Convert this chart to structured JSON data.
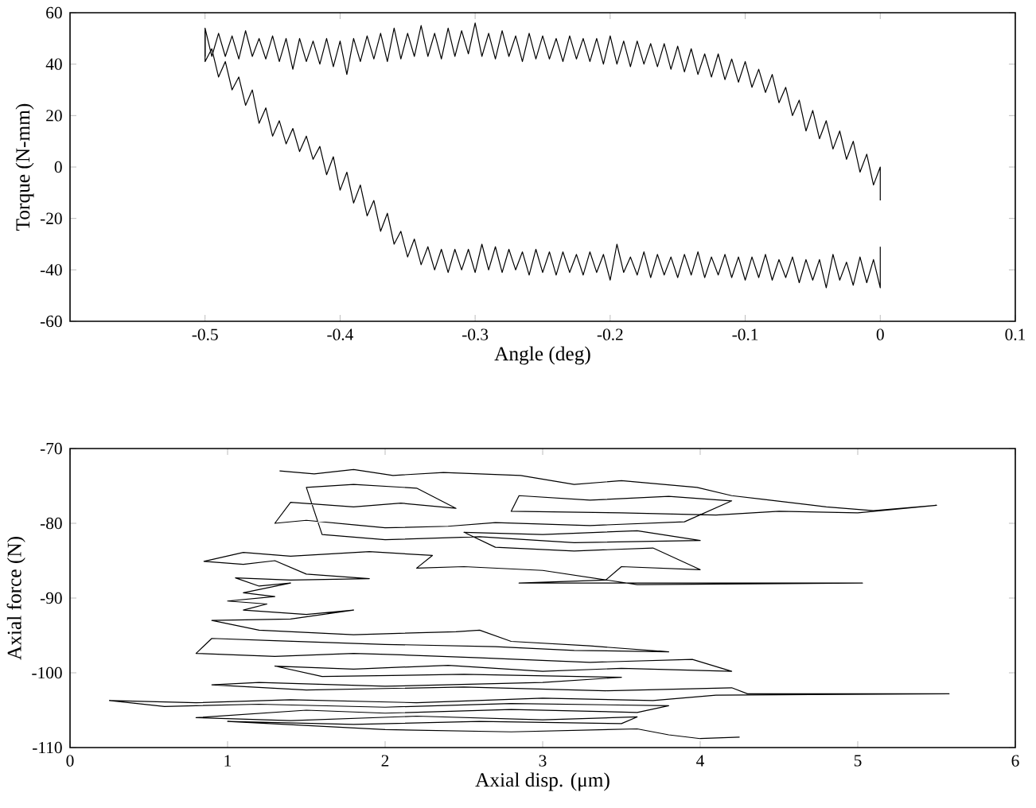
{
  "chart_data": [
    {
      "type": "line",
      "xlabel": "Angle (deg)",
      "ylabel": "Torque (N-mm)",
      "xlim": [
        -0.6,
        0.1
      ],
      "ylim": [
        -60,
        60
      ],
      "xticks": [
        -0.5,
        -0.4,
        -0.3,
        -0.2,
        -0.1,
        0,
        0.1
      ],
      "yticks": [
        -60,
        -40,
        -20,
        0,
        20,
        40,
        60
      ],
      "series": [
        {
          "color": "#000000",
          "x": [
            -0.5,
            -0.5,
            -0.495,
            -0.49,
            -0.485,
            -0.48,
            -0.475,
            -0.47,
            -0.465,
            -0.46,
            -0.455,
            -0.45,
            -0.445,
            -0.44,
            -0.435,
            -0.43,
            -0.425,
            -0.42,
            -0.415,
            -0.41,
            -0.405,
            -0.4,
            -0.395,
            -0.39,
            -0.385,
            -0.38,
            -0.375,
            -0.37,
            -0.365,
            -0.36,
            -0.355,
            -0.35,
            -0.345,
            -0.34,
            -0.335,
            -0.33,
            -0.325,
            -0.32,
            -0.315,
            -0.31,
            -0.305,
            -0.3,
            -0.295,
            -0.29,
            -0.285,
            -0.28,
            -0.275,
            -0.27,
            -0.265,
            -0.26,
            -0.255,
            -0.25,
            -0.245,
            -0.24,
            -0.235,
            -0.23,
            -0.225,
            -0.22,
            -0.215,
            -0.21,
            -0.205,
            -0.2,
            -0.195,
            -0.19,
            -0.185,
            -0.18,
            -0.175,
            -0.17,
            -0.165,
            -0.16,
            -0.155,
            -0.15,
            -0.145,
            -0.14,
            -0.135,
            -0.13,
            -0.125,
            -0.12,
            -0.115,
            -0.11,
            -0.105,
            -0.1,
            -0.095,
            -0.09,
            -0.085,
            -0.08,
            -0.075,
            -0.07,
            -0.065,
            -0.06,
            -0.055,
            -0.05,
            -0.045,
            -0.04,
            -0.035,
            -0.03,
            -0.025,
            -0.02,
            -0.015,
            -0.01,
            -0.005,
            0,
            0
          ],
          "values": [
            43,
            54,
            43,
            52,
            43,
            51,
            42,
            53,
            43,
            50,
            42,
            51,
            41,
            50,
            38,
            50,
            41,
            49,
            40,
            50,
            39,
            49,
            36,
            50,
            41,
            51,
            42,
            52,
            41,
            54,
            42,
            52,
            43,
            55,
            43,
            52,
            42,
            54,
            43,
            53,
            44,
            56,
            43,
            52,
            42,
            53,
            43,
            51,
            41,
            52,
            42,
            51,
            42,
            50,
            41,
            51,
            42,
            50,
            41,
            50,
            40,
            51,
            40,
            49,
            39,
            49,
            40,
            48,
            39,
            48,
            38,
            47,
            37,
            46,
            36,
            44,
            35,
            44,
            34,
            42,
            33,
            41,
            31,
            38,
            29,
            36,
            25,
            31,
            20,
            26,
            14,
            22,
            11,
            18,
            7,
            14,
            3,
            10,
            -2,
            5,
            -7,
            0,
            -13
          ]
        },
        {
          "color": "#000000",
          "x": [
            0,
            0,
            -0.005,
            -0.01,
            -0.015,
            -0.02,
            -0.025,
            -0.03,
            -0.035,
            -0.04,
            -0.045,
            -0.05,
            -0.055,
            -0.06,
            -0.065,
            -0.07,
            -0.075,
            -0.08,
            -0.085,
            -0.09,
            -0.095,
            -0.1,
            -0.105,
            -0.11,
            -0.115,
            -0.12,
            -0.125,
            -0.13,
            -0.135,
            -0.14,
            -0.145,
            -0.15,
            -0.155,
            -0.16,
            -0.165,
            -0.17,
            -0.175,
            -0.18,
            -0.185,
            -0.19,
            -0.195,
            -0.2,
            -0.205,
            -0.21,
            -0.215,
            -0.22,
            -0.225,
            -0.23,
            -0.235,
            -0.24,
            -0.245,
            -0.25,
            -0.255,
            -0.26,
            -0.265,
            -0.27,
            -0.275,
            -0.28,
            -0.285,
            -0.29,
            -0.295,
            -0.3,
            -0.305,
            -0.31,
            -0.315,
            -0.32,
            -0.325,
            -0.33,
            -0.335,
            -0.34,
            -0.345,
            -0.35,
            -0.355,
            -0.36,
            -0.365,
            -0.37,
            -0.375,
            -0.38,
            -0.385,
            -0.39,
            -0.395,
            -0.4,
            -0.405,
            -0.41,
            -0.415,
            -0.42,
            -0.425,
            -0.43,
            -0.435,
            -0.44,
            -0.445,
            -0.45,
            -0.455,
            -0.46,
            -0.465,
            -0.47,
            -0.475,
            -0.48,
            -0.485,
            -0.49,
            -0.495,
            -0.5,
            -0.5
          ],
          "values": [
            -31,
            -47,
            -36,
            -45,
            -35,
            -46,
            -37,
            -44,
            -34,
            -47,
            -36,
            -44,
            -36,
            -45,
            -35,
            -43,
            -36,
            -44,
            -34,
            -43,
            -35,
            -44,
            -35,
            -43,
            -34,
            -42,
            -35,
            -43,
            -33,
            -42,
            -34,
            -43,
            -35,
            -42,
            -34,
            -43,
            -33,
            -42,
            -35,
            -41,
            -30,
            -44,
            -34,
            -41,
            -33,
            -42,
            -34,
            -41,
            -33,
            -42,
            -33,
            -41,
            -32,
            -42,
            -33,
            -40,
            -32,
            -41,
            -31,
            -40,
            -30,
            -41,
            -32,
            -40,
            -32,
            -41,
            -32,
            -40,
            -31,
            -38,
            -28,
            -35,
            -25,
            -30,
            -18,
            -25,
            -13,
            -19,
            -7,
            -14,
            -2,
            -9,
            4,
            -3,
            8,
            3,
            12,
            6,
            15,
            9,
            18,
            12,
            23,
            17,
            30,
            24,
            35,
            30,
            41,
            35,
            46,
            41,
            53
          ]
        }
      ]
    },
    {
      "type": "line",
      "xlabel": "Axial disp. (μm)",
      "ylabel": "Axial force (N)",
      "xlim": [
        0,
        6
      ],
      "ylim": [
        -110,
        -70
      ],
      "xticks": [
        0,
        1,
        2,
        3,
        4,
        5,
        6
      ],
      "yticks": [
        -110,
        -100,
        -90,
        -80,
        -70
      ],
      "series": [
        {
          "color": "#000000",
          "x": [
            1.33,
            1.55,
            1.8,
            2.05,
            2.37,
            2.86,
            3.2,
            3.5,
            3.98,
            4.2,
            4.4,
            4.8,
            5.1,
            5.5,
            5.0,
            4.5,
            4.1,
            3.5,
            2.8,
            2.85,
            3.3,
            3.8,
            4.2,
            3.9,
            3.3,
            2.7,
            2.4,
            2.0,
            1.8,
            1.5,
            1.3,
            1.4,
            1.8,
            2.1,
            2.45,
            2.2,
            1.8,
            1.5,
            1.6,
            2.0,
            2.6,
            3.2,
            4.0,
            3.6,
            3.0,
            2.5,
            2.7,
            3.2,
            3.7,
            4.0,
            3.5,
            3.4,
            2.85,
            5.03,
            3.6,
            3.0,
            2.5,
            2.2,
            2.3,
            1.9,
            1.4,
            1.1,
            0.85,
            1.1,
            1.3,
            1.5,
            1.9,
            1.4,
            1.05,
            1.2,
            1.4,
            1.1,
            1.3,
            1.0,
            1.25,
            1.1,
            1.5,
            1.8,
            1.4,
            0.9,
            1.2,
            1.8,
            2.45,
            2.6,
            2.8,
            3.3,
            3.8,
            3.2,
            2.7,
            2.0,
            1.3,
            0.9,
            0.8,
            1.3,
            1.8,
            2.1,
            2.6,
            3.3,
            3.95,
            4.2,
            3.5,
            3.0,
            2.4,
            1.8,
            1.3,
            1.6,
            2.5,
            3.5,
            3.0,
            2.0,
            1.2,
            0.9,
            1.5,
            2.5,
            3.4,
            4.2,
            4.3,
            5.58,
            4.1,
            3.7,
            3.0,
            2.2,
            1.4,
            0.8,
            0.25,
            0.6,
            1.2,
            2.0,
            2.8,
            3.8,
            3.6,
            2.8,
            2.0,
            1.5,
            0.8,
            1.4,
            2.2,
            3.0,
            3.6,
            3.5,
            2.6,
            1.8,
            1.0,
            2.0,
            2.8,
            3.6,
            3.8,
            4.0,
            4.25
          ],
          "values": [
            -73.0,
            -73.4,
            -72.8,
            -73.6,
            -73.2,
            -73.6,
            -74.8,
            -74.3,
            -75.2,
            -76.3,
            -76.8,
            -77.8,
            -78.3,
            -77.6,
            -78.6,
            -78.4,
            -78.9,
            -78.6,
            -78.4,
            -76.3,
            -76.9,
            -76.4,
            -77.0,
            -79.8,
            -80.3,
            -79.9,
            -80.4,
            -80.6,
            -80.2,
            -79.6,
            -80.0,
            -77.2,
            -77.8,
            -77.3,
            -78.0,
            -75.3,
            -74.8,
            -75.2,
            -81.5,
            -82.2,
            -81.8,
            -82.6,
            -82.3,
            -81.0,
            -81.5,
            -81.2,
            -83.2,
            -83.7,
            -83.3,
            -86.2,
            -85.8,
            -87.6,
            -88.0,
            -88.0,
            -88.2,
            -86.3,
            -85.8,
            -86.0,
            -84.3,
            -83.8,
            -84.4,
            -83.9,
            -85.1,
            -85.5,
            -85.0,
            -86.8,
            -87.4,
            -87.6,
            -87.3,
            -88.4,
            -88.0,
            -89.3,
            -89.8,
            -90.4,
            -90.8,
            -91.6,
            -92.2,
            -91.6,
            -92.8,
            -93.0,
            -94.3,
            -94.9,
            -94.5,
            -94.3,
            -95.8,
            -96.4,
            -97.2,
            -97.0,
            -96.5,
            -96.2,
            -95.7,
            -95.4,
            -97.4,
            -97.8,
            -97.4,
            -97.6,
            -98.0,
            -98.6,
            -98.2,
            -99.8,
            -99.4,
            -99.8,
            -99.0,
            -99.5,
            -99.1,
            -100.5,
            -100.2,
            -100.6,
            -101.3,
            -101.8,
            -101.3,
            -101.6,
            -102.3,
            -101.9,
            -102.4,
            -102.0,
            -102.8,
            -102.8,
            -103.0,
            -103.7,
            -103.4,
            -104.0,
            -103.6,
            -104.0,
            -103.7,
            -104.5,
            -104.2,
            -104.6,
            -104.1,
            -104.4,
            -105.3,
            -104.9,
            -105.4,
            -105.0,
            -106.0,
            -106.4,
            -105.8,
            -106.3,
            -105.9,
            -106.8,
            -106.5,
            -106.9,
            -106.5,
            -107.6,
            -107.9,
            -107.5,
            -108.3,
            -108.8,
            -108.6
          ]
        }
      ]
    }
  ]
}
